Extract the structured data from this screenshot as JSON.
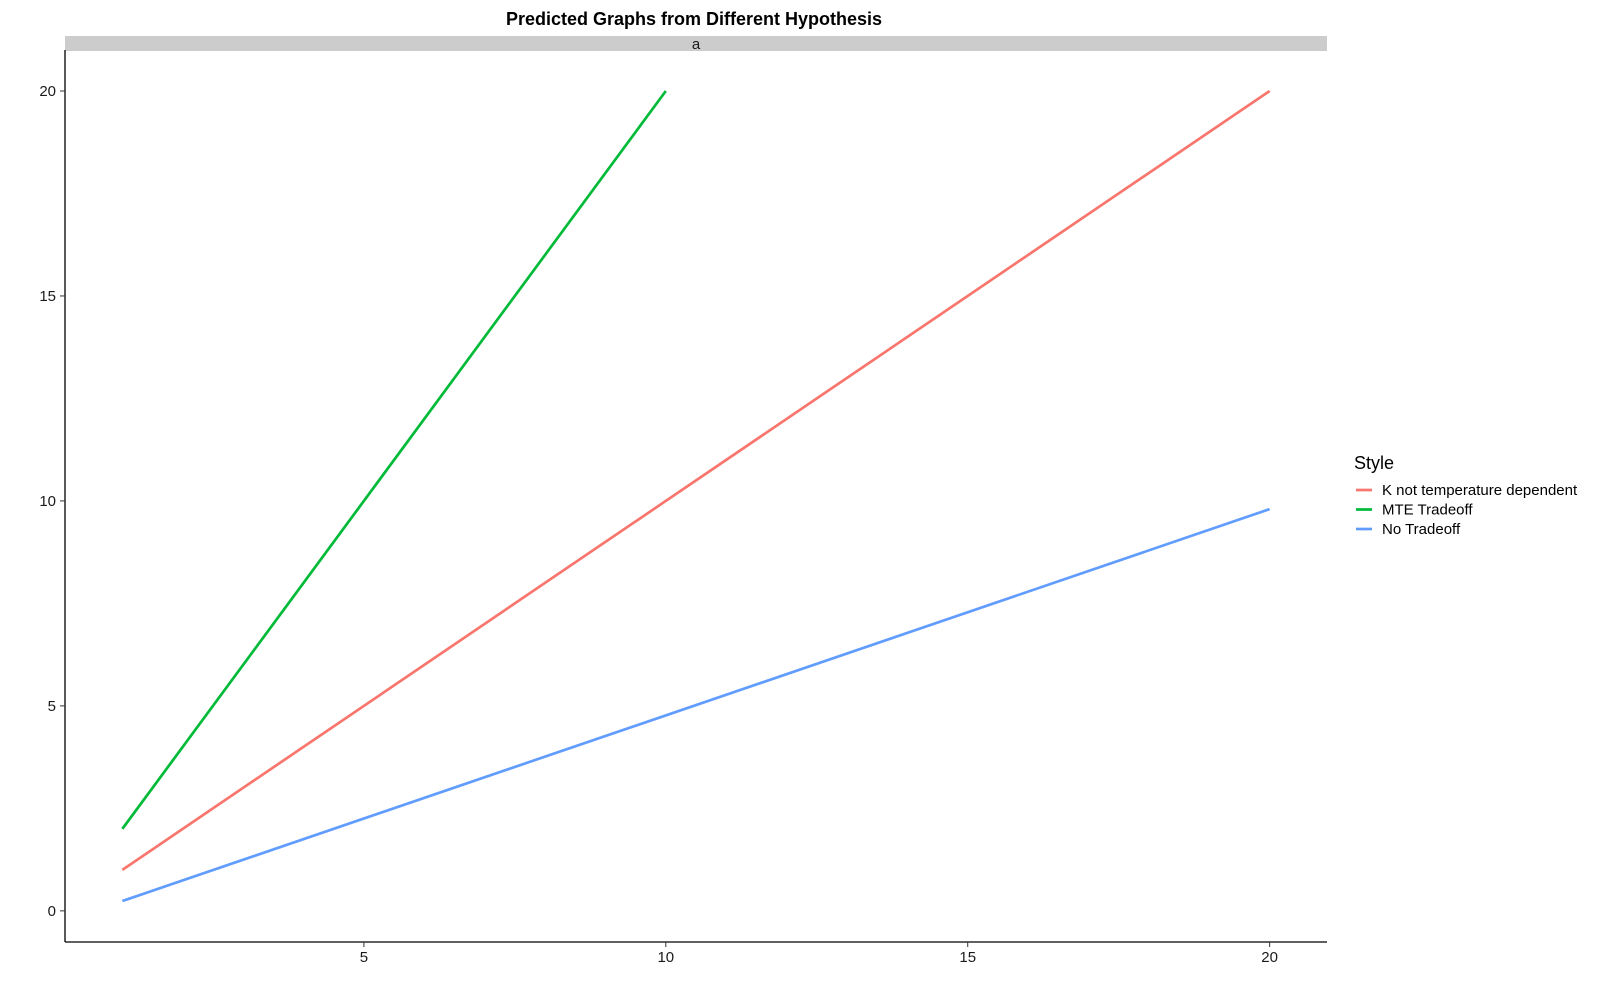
{
  "chart_data": {
    "type": "line",
    "title": "Predicted Graphs from Different Hypothesis",
    "facet_label": "a",
    "xlabel": "",
    "ylabel": "",
    "xlim": [
      0.05,
      20.95
    ],
    "ylim": [
      -0.76,
      21.0
    ],
    "x_ticks": [
      5,
      10,
      15,
      20
    ],
    "y_ticks": [
      0,
      5,
      10,
      15,
      20
    ],
    "grid": false,
    "legend": {
      "title": "Style",
      "position": "right"
    },
    "series": [
      {
        "name": "K not temperature dependent",
        "color": "#F8766D",
        "points": [
          [
            1,
            1
          ],
          [
            20,
            20
          ]
        ]
      },
      {
        "name": "MTE Tradeoff",
        "color": "#00BA38",
        "points": [
          [
            1,
            2
          ],
          [
            10,
            20
          ]
        ]
      },
      {
        "name": "No Tradeoff",
        "color": "#619CFF",
        "points": [
          [
            1,
            0.24
          ],
          [
            20,
            9.8
          ]
        ]
      }
    ]
  }
}
